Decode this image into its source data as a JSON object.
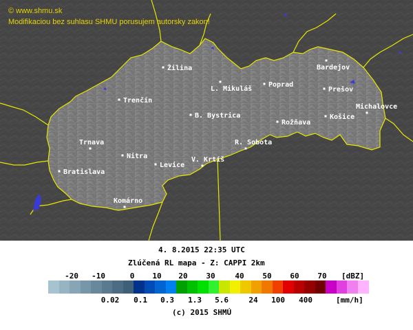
{
  "watermark": {
    "line1": "© www.shmu.sk",
    "line2": "Modifikaciou bez suhlasu SHMU porusujem autorsky zakon!"
  },
  "map": {
    "cities": [
      {
        "name": "Žilina"
      },
      {
        "name": "Bardejov"
      },
      {
        "name": "L. Mikuláš"
      },
      {
        "name": "Poprad"
      },
      {
        "name": "Prešov"
      },
      {
        "name": "Trenčín"
      },
      {
        "name": "Michalovce"
      },
      {
        "name": "B. Bystrica"
      },
      {
        "name": "Košice"
      },
      {
        "name": "Rožňava"
      },
      {
        "name": "Trnava"
      },
      {
        "name": "R. Sobota"
      },
      {
        "name": "Nitra"
      },
      {
        "name": "V. Krtíš"
      },
      {
        "name": "Levice"
      },
      {
        "name": "Bratislava"
      },
      {
        "name": "Komárno"
      }
    ]
  },
  "legend": {
    "datetime": "4. 8.2015  22:35 UTC",
    "product": "Zlúčená RL mapa - Z: CAPPI 2km",
    "dbz_ticks": [
      "-20",
      "-10",
      "0",
      "10",
      "20",
      "30",
      "40",
      "50",
      "60",
      "70"
    ],
    "dbz_unit": "[dBZ]",
    "rain_ticks": [
      "0.02",
      "0.1",
      "0.3",
      "1.3",
      "5.6",
      "24",
      "100",
      "400"
    ],
    "rain_unit": "[mm/h]",
    "copyright": "(c) 2015 SHMÚ",
    "colors": [
      "#a8c3d0",
      "#97b4c3",
      "#87a5b6",
      "#7896a9",
      "#6a889c",
      "#5a7a90",
      "#4c6c84",
      "#3e5f78",
      "#00328c",
      "#004cb4",
      "#0064d2",
      "#0080f0",
      "#00a000",
      "#00c000",
      "#00e000",
      "#30f030",
      "#c8e600",
      "#f0f000",
      "#f0c800",
      "#f0a000",
      "#f07800",
      "#f04000",
      "#e00000",
      "#b80000",
      "#940000",
      "#700000",
      "#c800c8",
      "#e040e0",
      "#f080f0",
      "#ffb4ff"
    ]
  }
}
